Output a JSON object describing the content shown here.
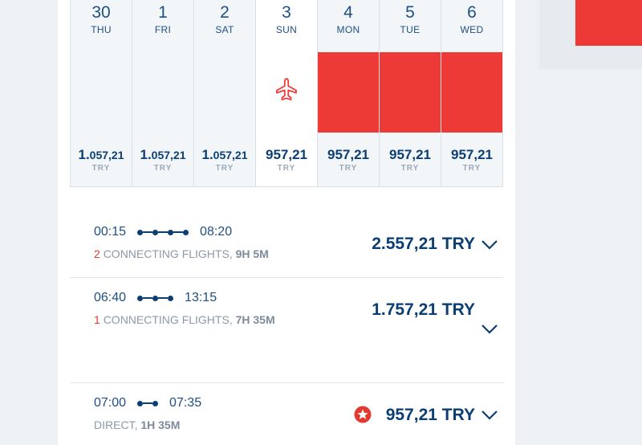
{
  "calendar": {
    "days": [
      {
        "num": "30",
        "name": "THU",
        "price_main": "1.",
        "price_rest": "057,21",
        "currency": "TRY",
        "selected": false,
        "bar": false
      },
      {
        "num": "1",
        "name": "FRI",
        "price_main": "1.",
        "price_rest": "057,21",
        "currency": "TRY",
        "selected": false,
        "bar": false
      },
      {
        "num": "2",
        "name": "SAT",
        "price_main": "1.",
        "price_rest": "057,21",
        "currency": "TRY",
        "selected": false,
        "bar": false
      },
      {
        "num": "3",
        "name": "SUN",
        "price_main": "957,21",
        "price_rest": "",
        "currency": "TRY",
        "selected": true,
        "bar": false
      },
      {
        "num": "4",
        "name": "MON",
        "price_main": "957,21",
        "price_rest": "",
        "currency": "TRY",
        "selected": false,
        "bar": true
      },
      {
        "num": "5",
        "name": "TUE",
        "price_main": "957,21",
        "price_rest": "",
        "currency": "TRY",
        "selected": false,
        "bar": true
      },
      {
        "num": "6",
        "name": "WED",
        "price_main": "957,21",
        "price_rest": "",
        "currency": "TRY",
        "selected": false,
        "bar": true
      }
    ]
  },
  "flights": [
    {
      "depart": "00:15",
      "arrive": "08:20",
      "stops": "2",
      "type": "CONNECTING FLIGHTS",
      "duration": "9H 5M",
      "price": "2.557,21 TRY"
    },
    {
      "depart": "06:40",
      "arrive": "13:15",
      "stops": "1",
      "type": "CONNECTING FLIGHTS",
      "duration": "7H 35M",
      "price": "1.757,21 TRY"
    },
    {
      "depart": "07:00",
      "arrive": "07:35",
      "stops": "",
      "type": "DIRECT",
      "duration": "1H 35M",
      "price": "957,21 TRY"
    }
  ],
  "colors": {
    "accent": "#ee3a36",
    "primary": "#0b3e73"
  },
  "icons": {
    "selected_day": "plane-icon",
    "expand": "chevron-down-icon",
    "best": "star-badge-icon"
  }
}
